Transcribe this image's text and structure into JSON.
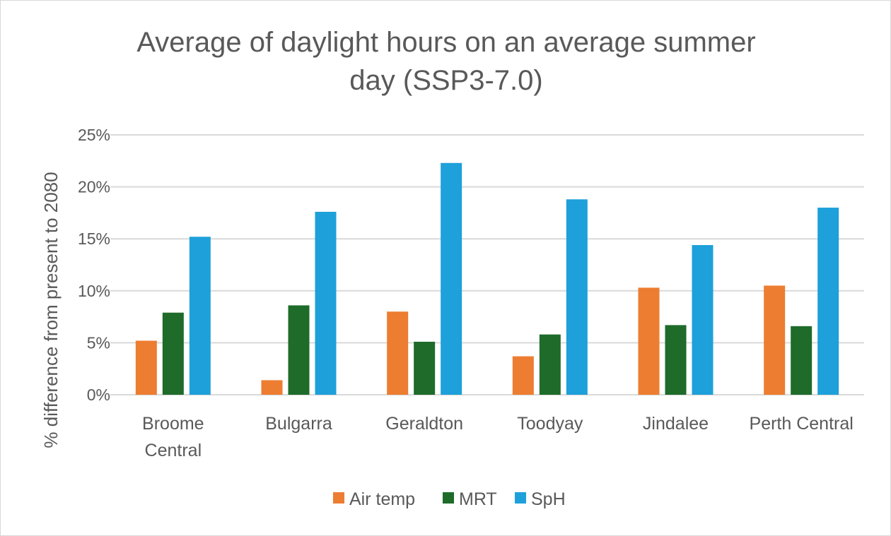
{
  "chart_data": {
    "type": "bar",
    "title_lines": [
      "Average of daylight hours on an average summer",
      "day (SSP3-7.0)"
    ],
    "ylabel": "% difference from present to 2080",
    "xlabel": "",
    "categories": [
      [
        "Broome",
        "Central"
      ],
      [
        "Bulgarra"
      ],
      [
        "Geraldton"
      ],
      [
        "Toodyay"
      ],
      [
        "Jindalee"
      ],
      [
        "Perth Central"
      ]
    ],
    "ylim": [
      0,
      25
    ],
    "yticks": [
      0,
      5,
      10,
      15,
      20,
      25
    ],
    "ytick_labels": [
      "0%",
      "5%",
      "10%",
      "15%",
      "20%",
      "25%"
    ],
    "grid": true,
    "legend_position": "bottom",
    "series": [
      {
        "name": "Air temp",
        "color": "#ED7D31",
        "values": [
          5.2,
          1.4,
          8.0,
          3.7,
          10.3,
          10.5
        ]
      },
      {
        "name": "MRT",
        "color": "#1E6B2A",
        "values": [
          7.9,
          8.6,
          5.1,
          5.8,
          6.7,
          6.6
        ]
      },
      {
        "name": "SpH",
        "color": "#1EA0DA",
        "values": [
          15.2,
          17.6,
          22.3,
          18.8,
          14.4,
          18.0
        ]
      }
    ]
  }
}
